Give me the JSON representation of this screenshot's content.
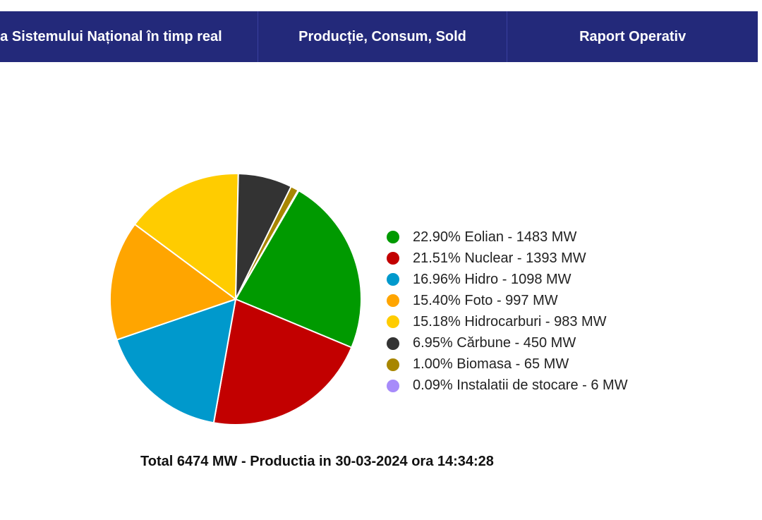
{
  "nav": {
    "tabs": [
      {
        "label": "a Sistemului Național în timp real"
      },
      {
        "label": "Producție, Consum, Sold"
      },
      {
        "label": "Raport Operativ"
      }
    ]
  },
  "chart_data": {
    "type": "pie",
    "slices": [
      {
        "label": "22.90% Eolian - 1483 MW",
        "value": 1483,
        "color": "#009a00"
      },
      {
        "label": "21.51% Nuclear - 1393 MW",
        "value": 1393,
        "color": "#c20000"
      },
      {
        "label": "16.96% Hidro - 1098 MW",
        "value": 1098,
        "color": "#0099cc"
      },
      {
        "label": "15.40% Foto - 997 MW",
        "value": 997,
        "color": "#ffa500"
      },
      {
        "label": "15.18% Hidrocarburi - 983 MW",
        "value": 983,
        "color": "#ffcc00"
      },
      {
        "label": "6.95% Cărbune - 450 MW",
        "value": 450,
        "color": "#333333"
      },
      {
        "label": "1.00% Biomasa - 65 MW",
        "value": 65,
        "color": "#a88600"
      },
      {
        "label": "0.09% Instalatii de stocare - 6 MW",
        "value": 6,
        "color": "#a78bfa"
      }
    ],
    "total_label": "Total 6474 MW - Productia in 30-03-2024 ora 14:34:28",
    "legend_position": "right"
  }
}
